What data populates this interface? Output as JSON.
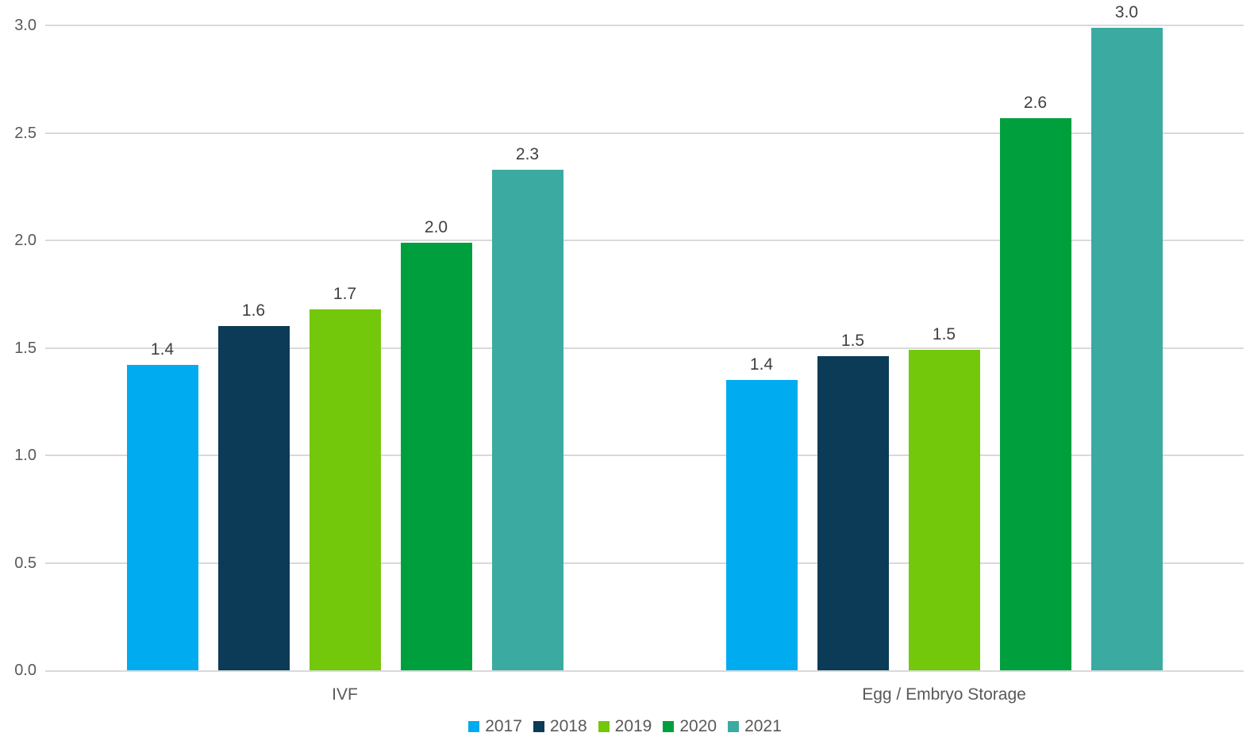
{
  "chart_data": {
    "type": "bar",
    "title": "",
    "categories": [
      "IVF",
      "Egg / Embryo Storage"
    ],
    "series": [
      {
        "name": "2017",
        "color": "#00ACEF",
        "values": [
          1.42,
          1.35
        ],
        "data_labels": [
          "1.4",
          "1.4"
        ]
      },
      {
        "name": "2018",
        "color": "#0B3B57",
        "values": [
          1.6,
          1.46
        ],
        "data_labels": [
          "1.6",
          "1.5"
        ]
      },
      {
        "name": "2019",
        "color": "#74C80B",
        "values": [
          1.68,
          1.49
        ],
        "data_labels": [
          "1.7",
          "1.5"
        ]
      },
      {
        "name": "2020",
        "color": "#009F3D",
        "values": [
          1.99,
          2.57
        ],
        "data_labels": [
          "2.0",
          "2.6"
        ]
      },
      {
        "name": "2021",
        "color": "#3BABA1",
        "values": [
          2.33,
          2.99
        ],
        "data_labels": [
          "2.3",
          "3.0"
        ]
      }
    ],
    "y_axis": {
      "min": 0.0,
      "max": 3.0,
      "step": 0.5,
      "tick_labels": [
        "0.0",
        "0.5",
        "1.0",
        "1.5",
        "2.0",
        "2.5",
        "3.0"
      ]
    },
    "legend": {
      "position": "bottom",
      "entries": [
        "2017",
        "2018",
        "2019",
        "2020",
        "2021"
      ]
    },
    "grid": true,
    "colors": {
      "background": "#FFFFFF",
      "gridline": "#D9D9D9",
      "axis_line": "#D9D9D9",
      "axis_text": "#595959",
      "data_label_text": "#404040"
    }
  }
}
